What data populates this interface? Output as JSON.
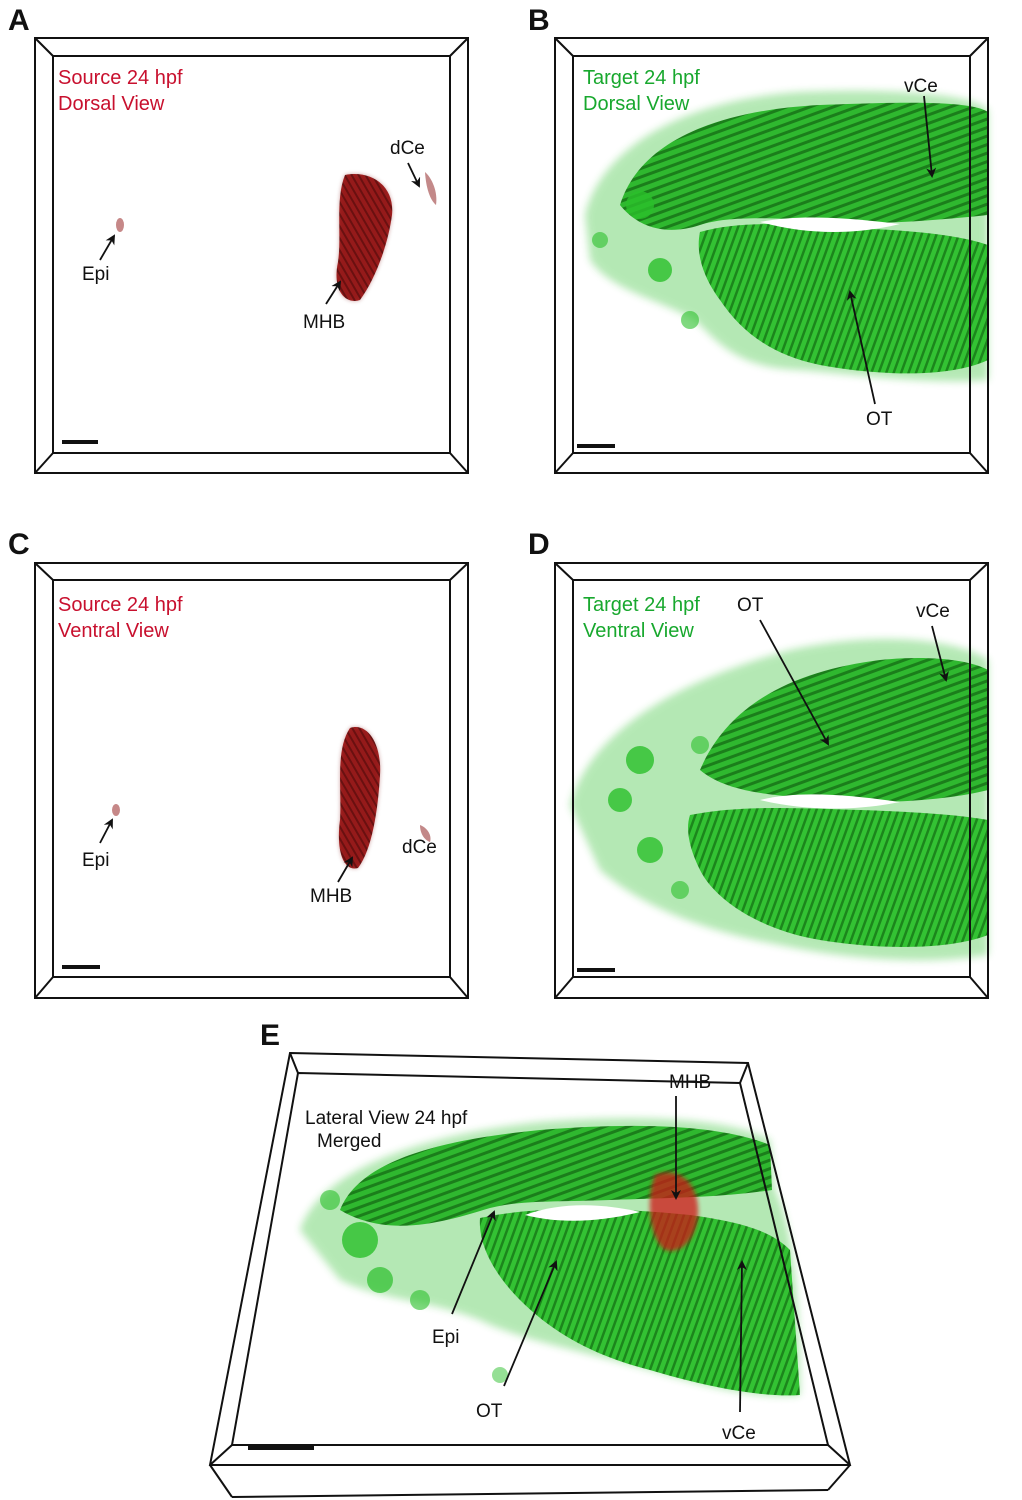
{
  "colors": {
    "source_red": "#c8102e",
    "target_green": "#18a82e",
    "tissue_red": "#8b1010",
    "tissue_green": "#2bbf2b",
    "frame": "#111111"
  },
  "panels": [
    {
      "letter": "A",
      "caption_line1": "Source 24 hpf",
      "caption_line2": "Dorsal View",
      "labels": [
        "dCe",
        "Epi",
        "MHB"
      ]
    },
    {
      "letter": "B",
      "caption_line1": "Target 24 hpf",
      "caption_line2": "Dorsal View",
      "labels": [
        "vCe",
        "OT"
      ]
    },
    {
      "letter": "C",
      "caption_line1": "Source 24 hpf",
      "caption_line2": "Ventral View",
      "labels": [
        "Epi",
        "dCe",
        "MHB"
      ]
    },
    {
      "letter": "D",
      "caption_line1": "Target 24 hpf",
      "caption_line2": "Ventral View",
      "labels": [
        "OT",
        "vCe"
      ]
    },
    {
      "letter": "E",
      "caption_line1": "Lateral View 24 hpf",
      "caption_line2": "Merged",
      "labels": [
        "MHB",
        "Epi",
        "OT",
        "vCe"
      ]
    }
  ]
}
